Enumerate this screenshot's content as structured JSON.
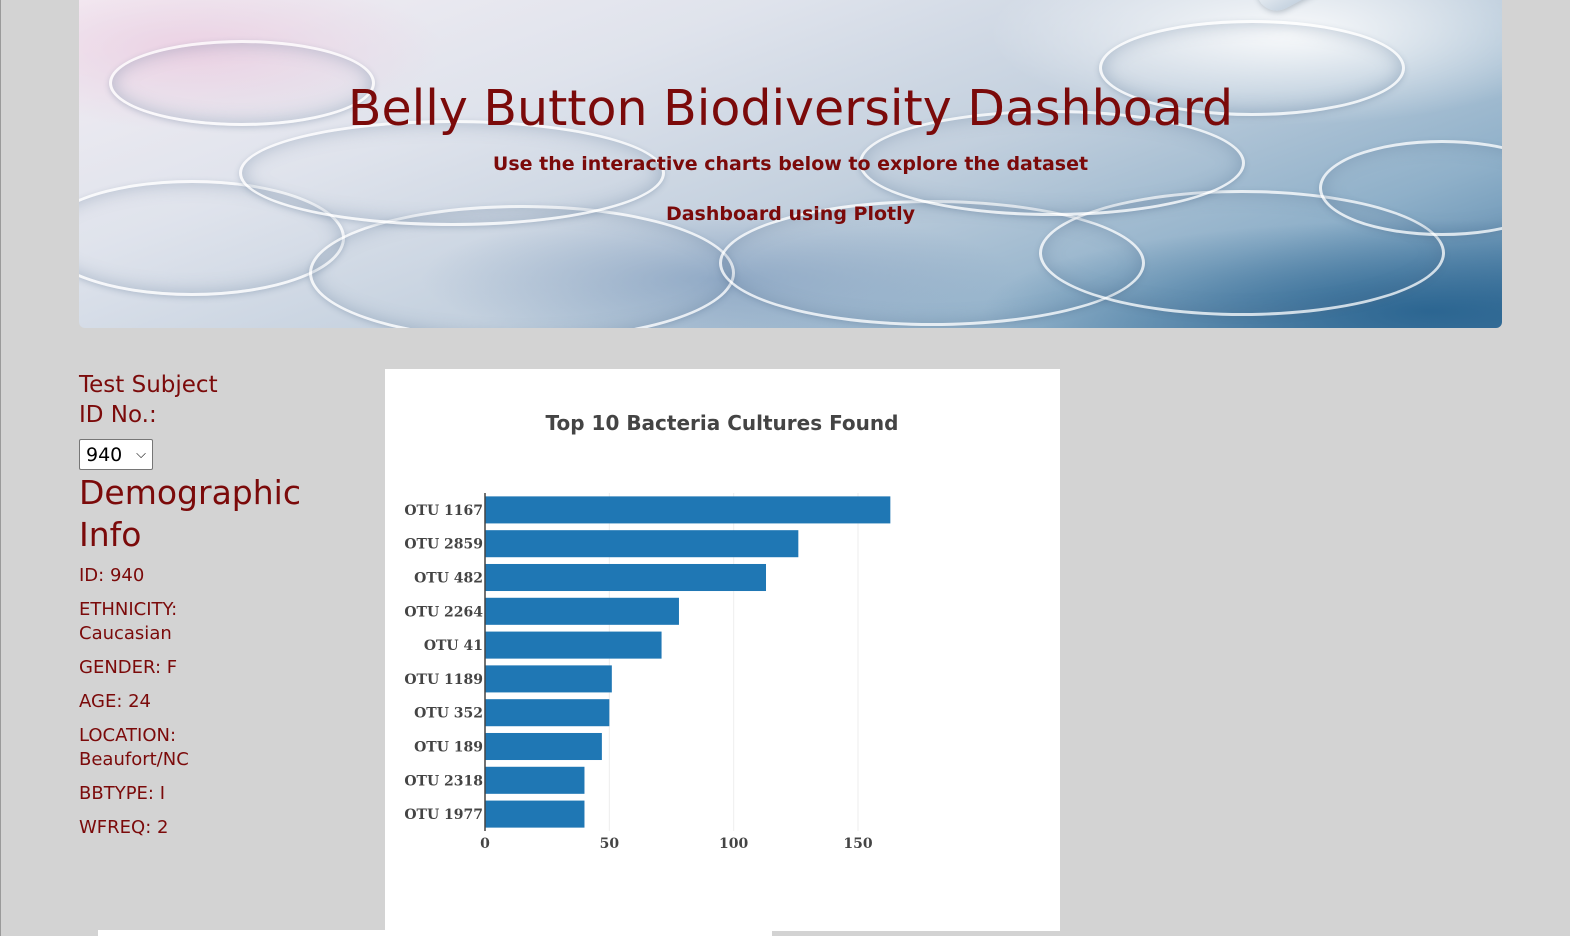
{
  "header": {
    "title": "Belly Button Biodiversity Dashboard",
    "subtitle": "Use the interactive charts below to explore the dataset",
    "tagline": "Dashboard using Plotly"
  },
  "sidebar": {
    "select_label": "Test Subject ID No.:",
    "selected_id": "940",
    "demo_title": "Demographic Info",
    "demographics": [
      "ID: 940",
      "ETHNICITY: Caucasian",
      "GENDER: F",
      "AGE: 24",
      "LOCATION: Beaufort/NC",
      "BBTYPE: I",
      "WFREQ: 2"
    ]
  },
  "colors": {
    "accent": "#7b0a0a",
    "bar": "#1f77b4",
    "page_bg": "#d3d3d3"
  },
  "chart_data": {
    "type": "bar",
    "orientation": "horizontal",
    "title": "Top 10 Bacteria Cultures Found",
    "categories": [
      "OTU 1167",
      "OTU 2859",
      "OTU 482",
      "OTU 2264",
      "OTU 41",
      "OTU 1189",
      "OTU 352",
      "OTU 189",
      "OTU 2318",
      "OTU 1977"
    ],
    "values": [
      163,
      126,
      113,
      78,
      71,
      51,
      50,
      47,
      40,
      40
    ],
    "xlim": [
      0,
      189
    ],
    "xticks": [
      0,
      50,
      100,
      150
    ],
    "grid": true,
    "xlabel": "",
    "ylabel": ""
  }
}
